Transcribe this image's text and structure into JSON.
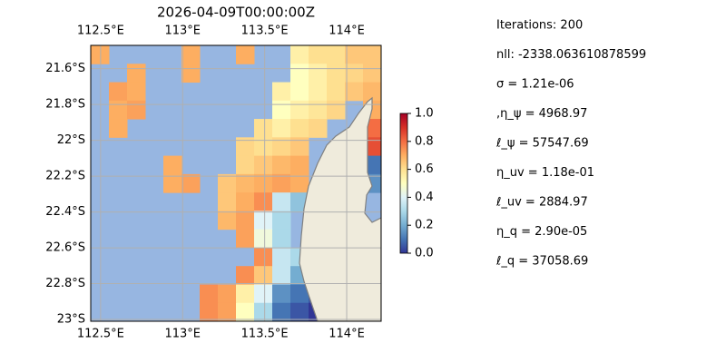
{
  "chart_data": {
    "type": "heatmap-map",
    "title": "2026-04-09T00:00:00Z",
    "xlim": [
      112.44,
      114.21
    ],
    "ylim": [
      21.47,
      23.01
    ],
    "xticks": [
      {
        "value": 112.5,
        "label": "112.5°E"
      },
      {
        "value": 113,
        "label": "113°E"
      },
      {
        "value": 113.5,
        "label": "113.5°E"
      },
      {
        "value": 114,
        "label": "114°E"
      }
    ],
    "yticks": [
      {
        "value": 21.6,
        "label": "21.6°S"
      },
      {
        "value": 21.8,
        "label": "21.8°S"
      },
      {
        "value": 22,
        "label": "22°S"
      },
      {
        "value": 22.2,
        "label": "22.2°S"
      },
      {
        "value": 22.4,
        "label": "22.4°S"
      },
      {
        "value": 22.6,
        "label": "22.6°S"
      },
      {
        "value": 22.8,
        "label": "22.8°S"
      },
      {
        "value": 23,
        "label": "23°S"
      }
    ],
    "grid": true,
    "clim": [
      0,
      1
    ],
    "cticks": [
      {
        "value": 0,
        "label": "0.0"
      },
      0.2,
      0.4,
      0.6,
      0.8,
      {
        "value": 1,
        "label": "1.0"
      }
    ],
    "rows": [
      [
        0.7,
        null,
        null,
        null,
        null,
        0.7,
        null,
        null,
        0.7,
        null,
        null,
        0.55,
        0.6,
        0.6,
        0.65,
        0.65
      ],
      [
        null,
        null,
        0.7,
        null,
        null,
        0.7,
        null,
        null,
        null,
        null,
        null,
        0.5,
        0.55,
        0.6,
        0.62,
        0.65
      ],
      [
        null,
        0.72,
        0.7,
        null,
        null,
        null,
        null,
        null,
        null,
        null,
        0.55,
        0.5,
        0.55,
        0.6,
        0.65,
        0.68
      ],
      [
        null,
        0.7,
        0.72,
        null,
        null,
        null,
        null,
        null,
        null,
        null,
        0.5,
        0.55,
        0.58,
        0.62,
        null,
        0.7
      ],
      [
        null,
        0.7,
        null,
        null,
        null,
        null,
        null,
        null,
        null,
        0.6,
        0.55,
        0.6,
        0.62,
        null,
        null,
        0.8
      ],
      [
        null,
        null,
        null,
        null,
        null,
        null,
        null,
        null,
        0.62,
        0.6,
        0.62,
        0.65,
        null,
        null,
        null,
        0.85
      ],
      [
        null,
        null,
        null,
        null,
        0.7,
        null,
        null,
        null,
        0.62,
        0.65,
        0.68,
        0.7,
        null,
        null,
        null,
        0.1
      ],
      [
        null,
        null,
        null,
        null,
        0.7,
        0.72,
        null,
        0.65,
        0.68,
        0.7,
        0.72,
        0.7,
        null,
        null,
        null,
        0.15
      ],
      [
        null,
        null,
        null,
        null,
        null,
        null,
        null,
        0.65,
        0.7,
        0.75,
        0.35,
        0.25,
        null,
        null,
        null,
        null
      ],
      [
        null,
        null,
        null,
        null,
        null,
        null,
        null,
        0.68,
        0.72,
        0.4,
        0.3,
        null,
        null,
        null,
        null,
        null
      ],
      [
        null,
        null,
        null,
        null,
        null,
        null,
        null,
        null,
        0.72,
        0.45,
        0.3,
        null,
        null,
        null,
        null,
        null
      ],
      [
        null,
        null,
        null,
        null,
        null,
        null,
        null,
        null,
        null,
        0.75,
        0.35,
        0.3,
        null,
        null,
        null,
        null
      ],
      [
        null,
        null,
        null,
        null,
        null,
        null,
        null,
        null,
        0.75,
        0.65,
        0.35,
        0.2,
        null,
        null,
        null,
        null
      ],
      [
        null,
        null,
        null,
        null,
        null,
        null,
        0.75,
        0.72,
        0.55,
        0.4,
        0.15,
        0.1,
        0.05,
        null,
        null,
        null
      ],
      [
        null,
        null,
        null,
        null,
        null,
        null,
        0.75,
        0.72,
        0.5,
        0.3,
        0.1,
        0.05,
        0,
        null,
        null,
        null
      ]
    ],
    "info": [
      "Iterations: 200",
      "nll: -2338.063610878599",
      "σ = 1.21e-06",
      ",η_ψ = 4968.97",
      "ℓ_ψ = 57547.69",
      "η_uv = 1.18e-01",
      "ℓ_uv = 2884.97",
      "η_q = 2.90e-05",
      "ℓ_q = 37058.69"
    ]
  }
}
